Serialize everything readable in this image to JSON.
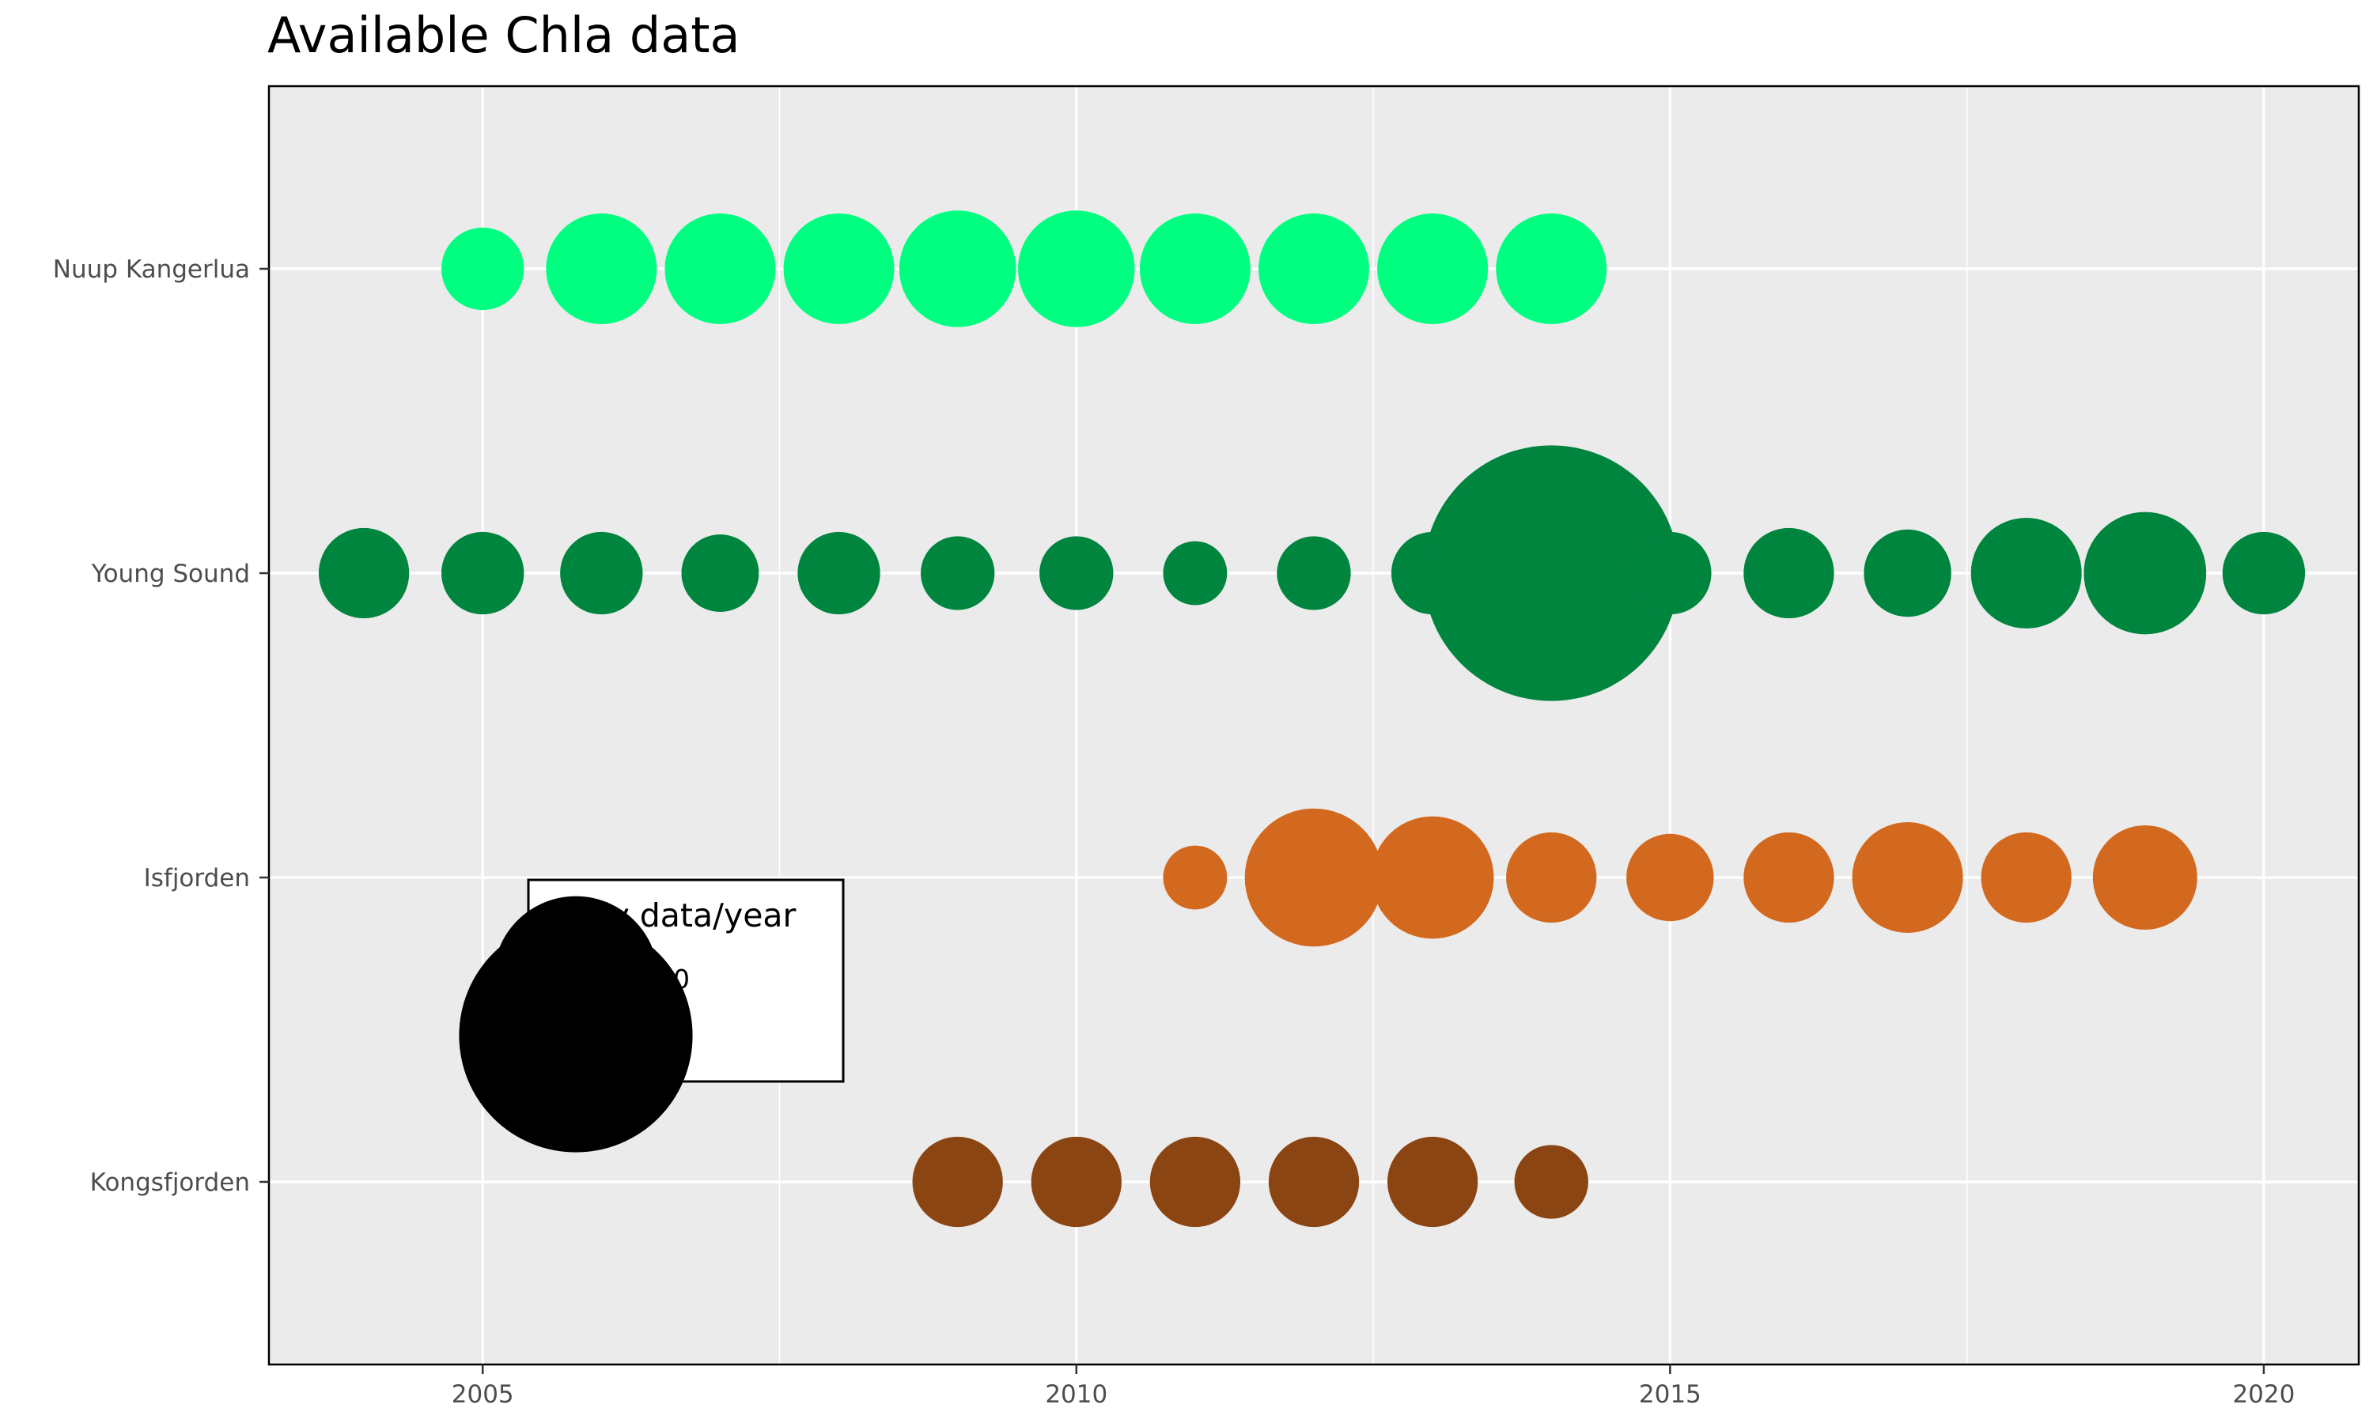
{
  "chart_data": {
    "type": "scatter",
    "title": "Available Chla data",
    "xlabel": "",
    "ylabel": "",
    "xlim": [
      2003.2,
      2020.8
    ],
    "x_ticks": [
      2005,
      2010,
      2015,
      2020
    ],
    "categories": [
      "Kongsfjorden",
      "Isfjorden",
      "Young Sound",
      "Nuup Kangerlua"
    ],
    "grid": true,
    "legend": {
      "title": "Daily data/year",
      "placement": "inside-bottom-left",
      "entries": [
        {
          "label": "1000",
          "value": 1000
        },
        {
          "label": "2000",
          "value": 2000
        }
      ]
    },
    "series": [
      {
        "site": "Nuup Kangerlua",
        "color": "#00FF80",
        "points": [
          {
            "x": 2005,
            "size": 250
          },
          {
            "x": 2006,
            "size": 450
          },
          {
            "x": 2007,
            "size": 450
          },
          {
            "x": 2008,
            "size": 450
          },
          {
            "x": 2009,
            "size": 500
          },
          {
            "x": 2010,
            "size": 500
          },
          {
            "x": 2011,
            "size": 450
          },
          {
            "x": 2012,
            "size": 450
          },
          {
            "x": 2013,
            "size": 450
          },
          {
            "x": 2014,
            "size": 450
          }
        ]
      },
      {
        "site": "Young Sound",
        "color": "#00853F",
        "points": [
          {
            "x": 2004,
            "size": 300
          },
          {
            "x": 2005,
            "size": 250
          },
          {
            "x": 2006,
            "size": 250
          },
          {
            "x": 2007,
            "size": 220
          },
          {
            "x": 2008,
            "size": 250
          },
          {
            "x": 2009,
            "size": 200
          },
          {
            "x": 2010,
            "size": 200
          },
          {
            "x": 2011,
            "size": 150
          },
          {
            "x": 2012,
            "size": 200
          },
          {
            "x": 2013,
            "size": 250
          },
          {
            "x": 2014,
            "size": 2400
          },
          {
            "x": 2015,
            "size": 250
          },
          {
            "x": 2016,
            "size": 300
          },
          {
            "x": 2017,
            "size": 280
          },
          {
            "x": 2018,
            "size": 450
          },
          {
            "x": 2019,
            "size": 550
          },
          {
            "x": 2020,
            "size": 250
          }
        ]
      },
      {
        "site": "Isfjorden",
        "color": "#D2691E",
        "points": [
          {
            "x": 2011,
            "size": 150
          },
          {
            "x": 2012,
            "size": 700
          },
          {
            "x": 2013,
            "size": 550
          },
          {
            "x": 2014,
            "size": 300
          },
          {
            "x": 2015,
            "size": 280
          },
          {
            "x": 2016,
            "size": 300
          },
          {
            "x": 2017,
            "size": 450
          },
          {
            "x": 2018,
            "size": 300
          },
          {
            "x": 2019,
            "size": 400
          }
        ]
      },
      {
        "site": "Kongsfjorden",
        "color": "#8B4513",
        "points": [
          {
            "x": 2009,
            "size": 300
          },
          {
            "x": 2010,
            "size": 300
          },
          {
            "x": 2011,
            "size": 300
          },
          {
            "x": 2012,
            "size": 300
          },
          {
            "x": 2013,
            "size": 300
          },
          {
            "x": 2014,
            "size": 200
          }
        ]
      }
    ]
  }
}
